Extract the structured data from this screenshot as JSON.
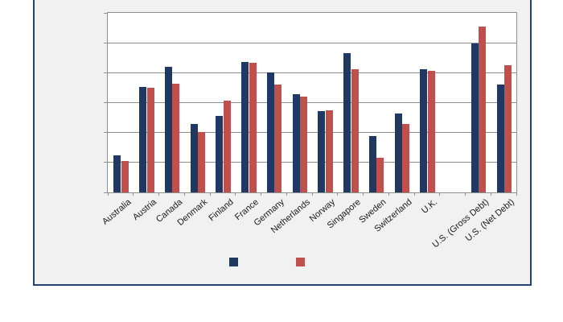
{
  "chart": {
    "frame_border_color": "#1f4472",
    "frame_background": "#f1f1f2",
    "plot_background": "#ffffff",
    "gridline_color": "#8e8e8e",
    "series1_color": "#1f3864",
    "series2_color": "#c0504d"
  },
  "chart_data": {
    "type": "bar",
    "title": "",
    "xlabel": "",
    "ylabel": "",
    "ylim": [
      0,
      120
    ],
    "gridline_step": 20,
    "y_axis_tick_labels_visible": false,
    "grid": true,
    "legend": {
      "position": "bottom",
      "labels_visible": false
    },
    "categories": [
      "Australia",
      "Austria",
      "Canada",
      "Denmark",
      "Finland",
      "France",
      "Germany",
      "Netherlands",
      "Norway",
      "Singapore",
      "Sweden",
      "Switzerland",
      "U.K.",
      "",
      "U.S. (Gross Debt)",
      "U.S. (Net Debt)"
    ],
    "series": [
      {
        "name": "",
        "color": "#1f3864",
        "values": [
          25,
          70.5,
          84,
          46,
          51,
          87,
          80,
          65.5,
          54.5,
          93,
          37.5,
          53,
          82.5,
          null,
          99.5,
          72
        ]
      },
      {
        "name": "",
        "color": "#c0504d",
        "values": [
          21,
          70,
          72.5,
          40.5,
          61.5,
          86.5,
          72,
          64,
          55,
          82.5,
          23,
          46,
          81,
          null,
          111,
          85
        ]
      }
    ]
  }
}
